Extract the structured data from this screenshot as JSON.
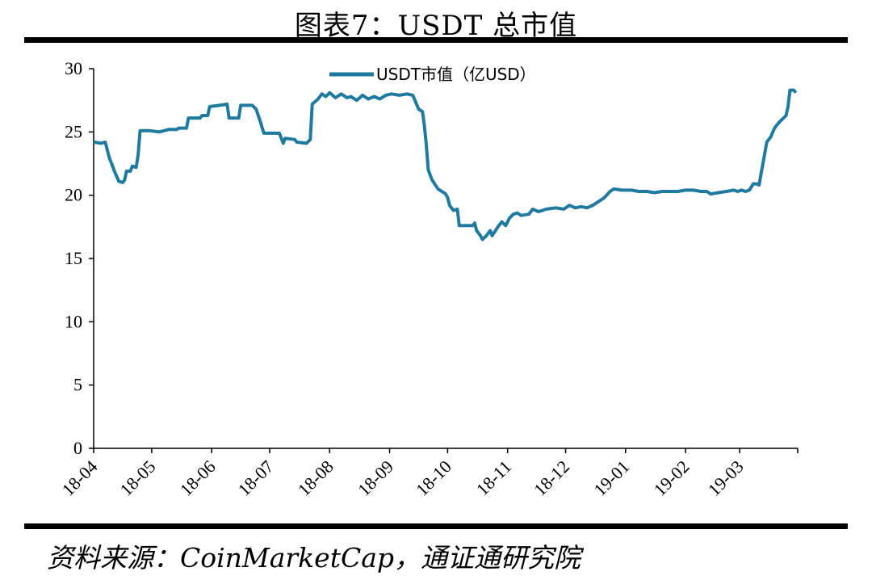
{
  "title": "图表7：USDT 总市值",
  "source": "资料来源：CoinMarketCap，通证通研究院",
  "colors": {
    "series": "#1f7aa0",
    "axis": "#000000"
  },
  "chart_data": {
    "type": "line",
    "legend": {
      "position": "top-center",
      "entries": [
        "USDT市值（亿USD）"
      ]
    },
    "ylim": [
      0,
      30
    ],
    "yticks": [
      "0",
      "5",
      "10",
      "15",
      "20",
      "25",
      "30"
    ],
    "xlim": [
      "2018-04-01",
      "2019-03-31"
    ],
    "xticks": [
      "18-04",
      "18-05",
      "18-06",
      "18-07",
      "18-08",
      "18-09",
      "18-10",
      "18-11",
      "18-12",
      "19-01",
      "19-02",
      "19-03"
    ],
    "grid": false,
    "series": [
      {
        "name": "USDT市值（亿USD）",
        "points": [
          [
            "2018-04-01",
            24.2
          ],
          [
            "2018-04-05",
            24.1
          ],
          [
            "2018-04-07",
            24.2
          ],
          [
            "2018-04-09",
            23.0
          ],
          [
            "2018-04-12",
            21.8
          ],
          [
            "2018-04-14",
            21.1
          ],
          [
            "2018-04-16",
            21.0
          ],
          [
            "2018-04-17",
            21.2
          ],
          [
            "2018-04-18",
            21.9
          ],
          [
            "2018-04-20",
            21.9
          ],
          [
            "2018-04-21",
            22.3
          ],
          [
            "2018-04-23",
            22.2
          ],
          [
            "2018-04-24",
            23.2
          ],
          [
            "2018-04-25",
            25.1
          ],
          [
            "2018-04-30",
            25.1
          ],
          [
            "2018-05-05",
            25.0
          ],
          [
            "2018-05-10",
            25.2
          ],
          [
            "2018-05-14",
            25.2
          ],
          [
            "2018-05-15",
            25.3
          ],
          [
            "2018-05-19",
            25.3
          ],
          [
            "2018-05-20",
            26.1
          ],
          [
            "2018-05-26",
            26.1
          ],
          [
            "2018-05-27",
            26.3
          ],
          [
            "2018-05-30",
            26.3
          ],
          [
            "2018-05-31",
            27.0
          ],
          [
            "2018-06-05",
            27.1
          ],
          [
            "2018-06-09",
            27.2
          ],
          [
            "2018-06-10",
            26.1
          ],
          [
            "2018-06-15",
            26.1
          ],
          [
            "2018-06-16",
            27.1
          ],
          [
            "2018-06-22",
            27.1
          ],
          [
            "2018-06-24",
            26.8
          ],
          [
            "2018-06-26",
            25.9
          ],
          [
            "2018-06-28",
            24.9
          ],
          [
            "2018-07-06",
            24.9
          ],
          [
            "2018-07-08",
            24.1
          ],
          [
            "2018-07-09",
            24.5
          ],
          [
            "2018-07-14",
            24.4
          ],
          [
            "2018-07-15",
            24.2
          ],
          [
            "2018-07-20",
            24.1
          ],
          [
            "2018-07-22",
            24.4
          ],
          [
            "2018-07-23",
            27.2
          ],
          [
            "2018-07-26",
            27.6
          ],
          [
            "2018-07-28",
            28.0
          ],
          [
            "2018-07-30",
            27.8
          ],
          [
            "2018-08-01",
            28.1
          ],
          [
            "2018-08-04",
            27.7
          ],
          [
            "2018-08-07",
            28.0
          ],
          [
            "2018-08-10",
            27.7
          ],
          [
            "2018-08-12",
            27.8
          ],
          [
            "2018-08-15",
            27.5
          ],
          [
            "2018-08-18",
            27.9
          ],
          [
            "2018-08-21",
            27.6
          ],
          [
            "2018-08-24",
            27.8
          ],
          [
            "2018-08-27",
            27.6
          ],
          [
            "2018-08-30",
            27.9
          ],
          [
            "2018-09-02",
            28.0
          ],
          [
            "2018-09-06",
            27.9
          ],
          [
            "2018-09-10",
            28.0
          ],
          [
            "2018-09-13",
            27.9
          ],
          [
            "2018-09-16",
            26.8
          ],
          [
            "2018-09-18",
            26.6
          ],
          [
            "2018-09-19",
            25.5
          ],
          [
            "2018-09-20",
            24.0
          ],
          [
            "2018-09-21",
            22.0
          ],
          [
            "2018-09-23",
            21.2
          ],
          [
            "2018-09-26",
            20.5
          ],
          [
            "2018-09-28",
            20.3
          ],
          [
            "2018-09-30",
            20.1
          ],
          [
            "2018-10-01",
            19.8
          ],
          [
            "2018-10-02",
            19.2
          ],
          [
            "2018-10-04",
            18.8
          ],
          [
            "2018-10-06",
            18.9
          ],
          [
            "2018-10-07",
            17.6
          ],
          [
            "2018-10-11",
            17.6
          ],
          [
            "2018-10-14",
            17.6
          ],
          [
            "2018-10-15",
            17.8
          ],
          [
            "2018-10-16",
            17.2
          ],
          [
            "2018-10-18",
            16.8
          ],
          [
            "2018-10-19",
            16.5
          ],
          [
            "2018-10-21",
            16.8
          ],
          [
            "2018-10-22",
            17.0
          ],
          [
            "2018-10-23",
            17.2
          ],
          [
            "2018-10-24",
            16.8
          ],
          [
            "2018-10-27",
            17.5
          ],
          [
            "2018-10-29",
            17.9
          ],
          [
            "2018-10-31",
            17.6
          ],
          [
            "2018-11-02",
            18.2
          ],
          [
            "2018-11-04",
            18.5
          ],
          [
            "2018-11-06",
            18.6
          ],
          [
            "2018-11-08",
            18.4
          ],
          [
            "2018-11-12",
            18.5
          ],
          [
            "2018-11-14",
            18.9
          ],
          [
            "2018-11-17",
            18.7
          ],
          [
            "2018-11-21",
            18.9
          ],
          [
            "2018-11-26",
            19.0
          ],
          [
            "2018-11-30",
            18.9
          ],
          [
            "2018-12-03",
            19.2
          ],
          [
            "2018-12-06",
            19.0
          ],
          [
            "2018-12-09",
            19.1
          ],
          [
            "2018-12-12",
            19.0
          ],
          [
            "2018-12-15",
            19.2
          ],
          [
            "2018-12-18",
            19.5
          ],
          [
            "2018-12-21",
            19.8
          ],
          [
            "2018-12-24",
            20.3
          ],
          [
            "2018-12-26",
            20.5
          ],
          [
            "2018-12-30",
            20.4
          ],
          [
            "2019-01-04",
            20.4
          ],
          [
            "2019-01-08",
            20.3
          ],
          [
            "2019-01-12",
            20.3
          ],
          [
            "2019-01-16",
            20.2
          ],
          [
            "2019-01-20",
            20.3
          ],
          [
            "2019-01-24",
            20.3
          ],
          [
            "2019-01-28",
            20.3
          ],
          [
            "2019-02-01",
            20.4
          ],
          [
            "2019-02-05",
            20.4
          ],
          [
            "2019-02-09",
            20.3
          ],
          [
            "2019-02-12",
            20.3
          ],
          [
            "2019-02-14",
            20.1
          ],
          [
            "2019-02-18",
            20.2
          ],
          [
            "2019-02-22",
            20.3
          ],
          [
            "2019-02-26",
            20.4
          ],
          [
            "2019-02-28",
            20.3
          ],
          [
            "2019-03-02",
            20.4
          ],
          [
            "2019-03-04",
            20.3
          ],
          [
            "2019-03-06",
            20.4
          ],
          [
            "2019-03-08",
            20.9
          ],
          [
            "2019-03-10",
            20.9
          ],
          [
            "2019-03-11",
            20.8
          ],
          [
            "2019-03-13",
            22.5
          ],
          [
            "2019-03-15",
            24.2
          ],
          [
            "2019-03-17",
            24.6
          ],
          [
            "2019-03-19",
            25.3
          ],
          [
            "2019-03-21",
            25.7
          ],
          [
            "2019-03-23",
            26.0
          ],
          [
            "2019-03-25",
            26.3
          ],
          [
            "2019-03-26",
            27.0
          ],
          [
            "2019-03-27",
            28.3
          ],
          [
            "2019-03-29",
            28.3
          ],
          [
            "2019-03-30",
            28.1
          ]
        ]
      }
    ]
  }
}
